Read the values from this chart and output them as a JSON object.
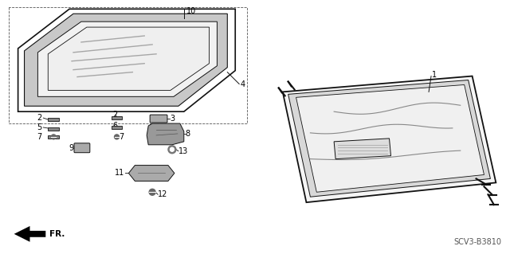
{
  "bg_color": "#ffffff",
  "line_color": "#000000",
  "fig_width": 6.4,
  "fig_height": 3.19,
  "dpi": 100,
  "footer_left": "FR.",
  "footer_right": "SCV3-B3810"
}
